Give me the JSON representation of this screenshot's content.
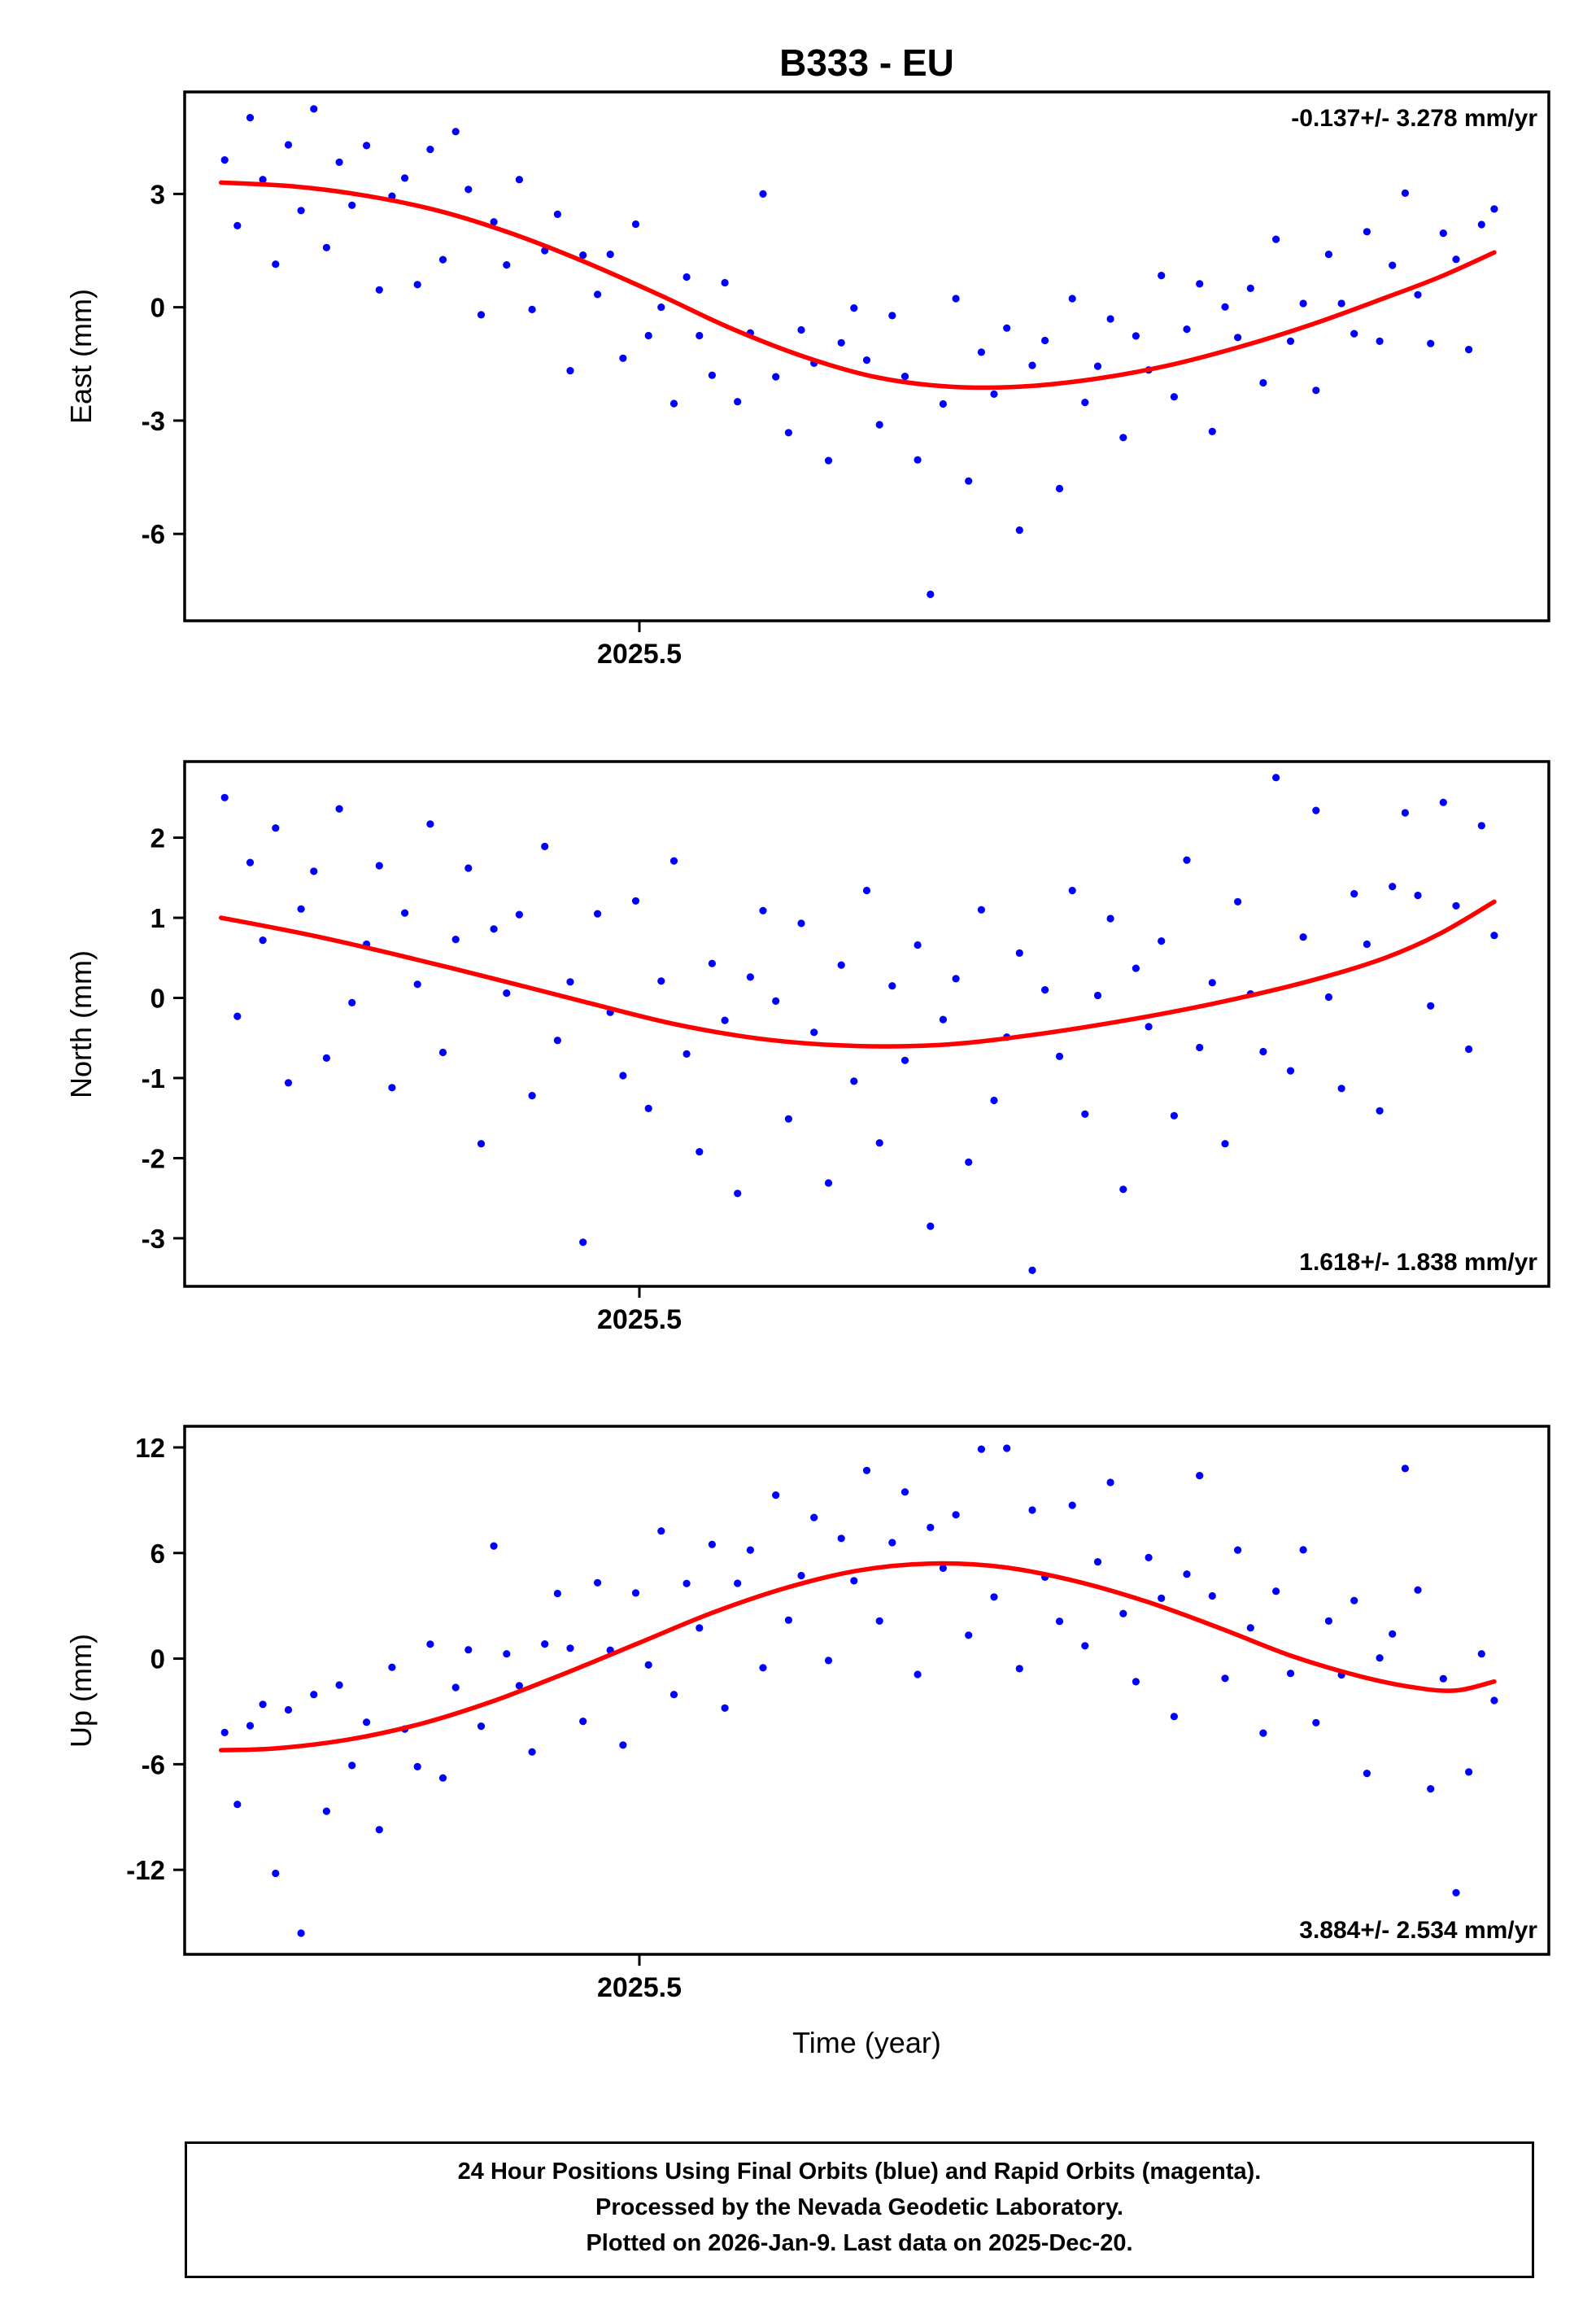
{
  "title": "B333 - EU",
  "xlabel": "Time (year)",
  "footer": {
    "line1": "24 Hour Positions Using Final Orbits (blue) and Rapid Orbits (magenta).",
    "line2": "Processed by the Nevada Geodetic Laboratory.",
    "line3": "Plotted on 2026-Jan-9. Last data on 2025-Dec-20."
  },
  "colors": {
    "point": "#0000ff",
    "trend": "#ff0000",
    "axis": "#000000"
  },
  "chart_data": {
    "type": "scatter",
    "xlim": [
      2025.25,
      2026.0
    ],
    "x_tick": {
      "value": 2025.5,
      "label": "2025.5"
    },
    "x": [
      2025.272,
      2025.279,
      2025.286,
      2025.293,
      2025.3,
      2025.307,
      2025.314,
      2025.321,
      2025.328,
      2025.335,
      2025.342,
      2025.35,
      2025.357,
      2025.364,
      2025.371,
      2025.378,
      2025.385,
      2025.392,
      2025.399,
      2025.406,
      2025.413,
      2025.42,
      2025.427,
      2025.434,
      2025.441,
      2025.448,
      2025.455,
      2025.462,
      2025.469,
      2025.477,
      2025.484,
      2025.491,
      2025.498,
      2025.505,
      2025.512,
      2025.519,
      2025.526,
      2025.533,
      2025.54,
      2025.547,
      2025.554,
      2025.561,
      2025.568,
      2025.575,
      2025.582,
      2025.589,
      2025.596,
      2025.604,
      2025.611,
      2025.618,
      2025.625,
      2025.632,
      2025.639,
      2025.646,
      2025.653,
      2025.66,
      2025.667,
      2025.674,
      2025.681,
      2025.688,
      2025.695,
      2025.702,
      2025.709,
      2025.716,
      2025.723,
      2025.731,
      2025.738,
      2025.745,
      2025.752,
      2025.759,
      2025.766,
      2025.773,
      2025.78,
      2025.787,
      2025.794,
      2025.801,
      2025.808,
      2025.815,
      2025.822,
      2025.829,
      2025.836,
      2025.843,
      2025.85,
      2025.858,
      2025.865,
      2025.872,
      2025.879,
      2025.886,
      2025.893,
      2025.9,
      2025.907,
      2025.914,
      2025.921,
      2025.928,
      2025.935,
      2025.942,
      2025.949,
      2025.956,
      2025.963,
      2025.97
    ],
    "panels": [
      {
        "id": "east",
        "ylabel": "East (mm)",
        "annotation": "-0.137+/- 3.278 mm/yr",
        "annotation_pos": "top-right",
        "ylim": [
          -8.3,
          5.7
        ],
        "yticks": [
          3,
          0,
          -3,
          -6
        ],
        "points_y": [
          3.9,
          2.16,
          5.02,
          3.38,
          1.14,
          4.3,
          2.56,
          5.25,
          1.58,
          3.84,
          2.7,
          4.28,
          0.46,
          2.94,
          3.42,
          0.6,
          4.18,
          1.26,
          4.65,
          3.12,
          -0.2,
          2.26,
          1.12,
          3.38,
          -0.06,
          1.5,
          2.46,
          -1.68,
          1.38,
          0.34,
          1.4,
          -1.35,
          2.2,
          -0.75,
          0,
          -2.55,
          0.8,
          -0.75,
          -1.8,
          0.65,
          -2.5,
          -0.68,
          3,
          -1.84,
          -3.32,
          -0.6,
          -1.48,
          -4.06,
          -0.94,
          -0.02,
          -1.4,
          -3.11,
          -0.22,
          -1.83,
          -4.04,
          -7.6,
          -2.56,
          0.23,
          -4.6,
          -1.19,
          -2.3,
          -0.55,
          -5.9,
          -1.54,
          -0.88,
          -4.8,
          0.23,
          -2.52,
          -1.56,
          -0.31,
          -3.45,
          -0.76,
          -1.66,
          0.84,
          -2.37,
          -0.58,
          0.62,
          -3.29,
          0.01,
          -0.8,
          0.5,
          -2,
          1.8,
          -0.9,
          0.1,
          -2.2,
          1.4,
          0.1,
          -0.7,
          2,
          -0.9,
          1.11,
          3.02,
          0.33,
          -0.96,
          1.96,
          1.27,
          -1.12,
          2.19,
          2.6
        ],
        "trend": {
          "x": [
            2025.27,
            2025.31,
            2025.35,
            2025.39,
            2025.43,
            2025.47,
            2025.51,
            2025.55,
            2025.59,
            2025.63,
            2025.67,
            2025.71,
            2025.75,
            2025.79,
            2025.83,
            2025.87,
            2025.91,
            2025.94,
            2025.97
          ],
          "y": [
            3.3,
            3.2,
            2.95,
            2.55,
            1.95,
            1.2,
            0.35,
            -0.55,
            -1.3,
            -1.85,
            -2.1,
            -2.1,
            -1.9,
            -1.55,
            -1.05,
            -0.45,
            0.25,
            0.8,
            1.45
          ]
        }
      },
      {
        "id": "north",
        "ylabel": "North (mm)",
        "annotation": "1.618+/- 1.838 mm/yr",
        "annotation_pos": "bottom-right",
        "ylim": [
          -3.6,
          2.95
        ],
        "yticks": [
          2,
          1,
          0,
          -1,
          -2,
          -3
        ],
        "points_y": [
          2.5,
          -0.23,
          1.69,
          0.72,
          2.12,
          -1.06,
          1.11,
          1.58,
          -0.75,
          2.36,
          -0.06,
          0.67,
          1.65,
          -1.12,
          1.06,
          0.17,
          2.17,
          -0.68,
          0.73,
          1.62,
          -1.82,
          0.86,
          0.06,
          1.04,
          -1.22,
          1.89,
          -0.53,
          0.2,
          -3.05,
          1.05,
          -0.18,
          -0.97,
          1.21,
          -1.38,
          0.21,
          1.71,
          -0.7,
          -1.92,
          0.43,
          -0.28,
          -2.44,
          0.26,
          1.09,
          -0.04,
          -1.51,
          0.93,
          -0.43,
          -2.31,
          0.41,
          -1.04,
          1.34,
          -1.81,
          0.15,
          -0.78,
          0.66,
          -2.85,
          -0.27,
          0.24,
          -2.05,
          1.1,
          -1.28,
          -0.49,
          0.56,
          -3.4,
          0.1,
          -0.73,
          1.34,
          -1.45,
          0.03,
          0.99,
          -2.39,
          0.37,
          -0.36,
          0.71,
          -1.47,
          1.72,
          -0.62,
          0.19,
          -1.82,
          1.2,
          0.05,
          -0.67,
          2.75,
          -0.91,
          0.76,
          2.34,
          0.01,
          -1.13,
          1.3,
          0.67,
          -1.41,
          1.39,
          2.31,
          1.28,
          -0.1,
          2.44,
          1.15,
          -0.64,
          2.15,
          0.78
        ],
        "trend": {
          "x": [
            2025.27,
            2025.32,
            2025.37,
            2025.42,
            2025.47,
            2025.52,
            2025.57,
            2025.62,
            2025.67,
            2025.72,
            2025.77,
            2025.82,
            2025.87,
            2025.91,
            2025.94,
            2025.97
          ],
          "y": [
            1.0,
            0.78,
            0.52,
            0.24,
            -0.05,
            -0.33,
            -0.52,
            -0.6,
            -0.58,
            -0.45,
            -0.27,
            -0.05,
            0.22,
            0.5,
            0.8,
            1.2
          ]
        }
      },
      {
        "id": "up",
        "ylabel": "Up (mm)",
        "annotation": "3.884+/- 2.534 mm/yr",
        "annotation_pos": "bottom-right",
        "ylim": [
          -16.8,
          13.2
        ],
        "yticks": [
          12,
          6,
          0,
          -6,
          -12
        ],
        "points_y": [
          -4.2,
          -8.28,
          -3.81,
          -2.6,
          -12.2,
          -2.91,
          -15.6,
          -2.04,
          -8.67,
          -1.5,
          -6.07,
          -3.61,
          -9.72,
          -0.49,
          -4,
          -6.14,
          0.82,
          -6.78,
          -1.64,
          0.5,
          -3.84,
          6.4,
          0.27,
          -1.54,
          -5.3,
          0.83,
          3.7,
          0.59,
          -3.56,
          4.31,
          0.48,
          -4.91,
          3.73,
          -0.36,
          7.25,
          -2.04,
          4.27,
          1.74,
          6.49,
          -2.81,
          4.28,
          6.17,
          -0.52,
          9.29,
          2.19,
          4.72,
          8.02,
          -0.11,
          6.83,
          4.42,
          10.69,
          2.14,
          6.59,
          9.47,
          -0.9,
          7.45,
          5.14,
          8.17,
          1.33,
          11.9,
          3.5,
          11.95,
          -0.57,
          8.44,
          4.63,
          2.12,
          8.71,
          0.73,
          5.5,
          10.01,
          2.56,
          -1.31,
          5.74,
          3.43,
          -3.29,
          4.8,
          10.4,
          3.56,
          -1.12,
          6.17,
          1.75,
          -4.23,
          3.83,
          -0.84,
          6.18,
          -3.64,
          2.14,
          -0.92,
          3.3,
          -6.52,
          0.04,
          1.4,
          10.8,
          3.9,
          -7.4,
          -1.14,
          -13.3,
          -6.44,
          0.27,
          -2.38
        ],
        "trend": {
          "x": [
            2025.27,
            2025.3,
            2025.34,
            2025.38,
            2025.42,
            2025.46,
            2025.5,
            2025.54,
            2025.58,
            2025.62,
            2025.66,
            2025.7,
            2025.74,
            2025.78,
            2025.82,
            2025.86,
            2025.9,
            2025.93,
            2025.95,
            2025.97
          ],
          "y": [
            -5.2,
            -5.1,
            -4.6,
            -3.7,
            -2.4,
            -0.8,
            0.9,
            2.6,
            4.0,
            5.0,
            5.4,
            5.2,
            4.4,
            3.2,
            1.7,
            0.1,
            -1.1,
            -1.7,
            -1.8,
            -1.3
          ]
        }
      }
    ]
  }
}
